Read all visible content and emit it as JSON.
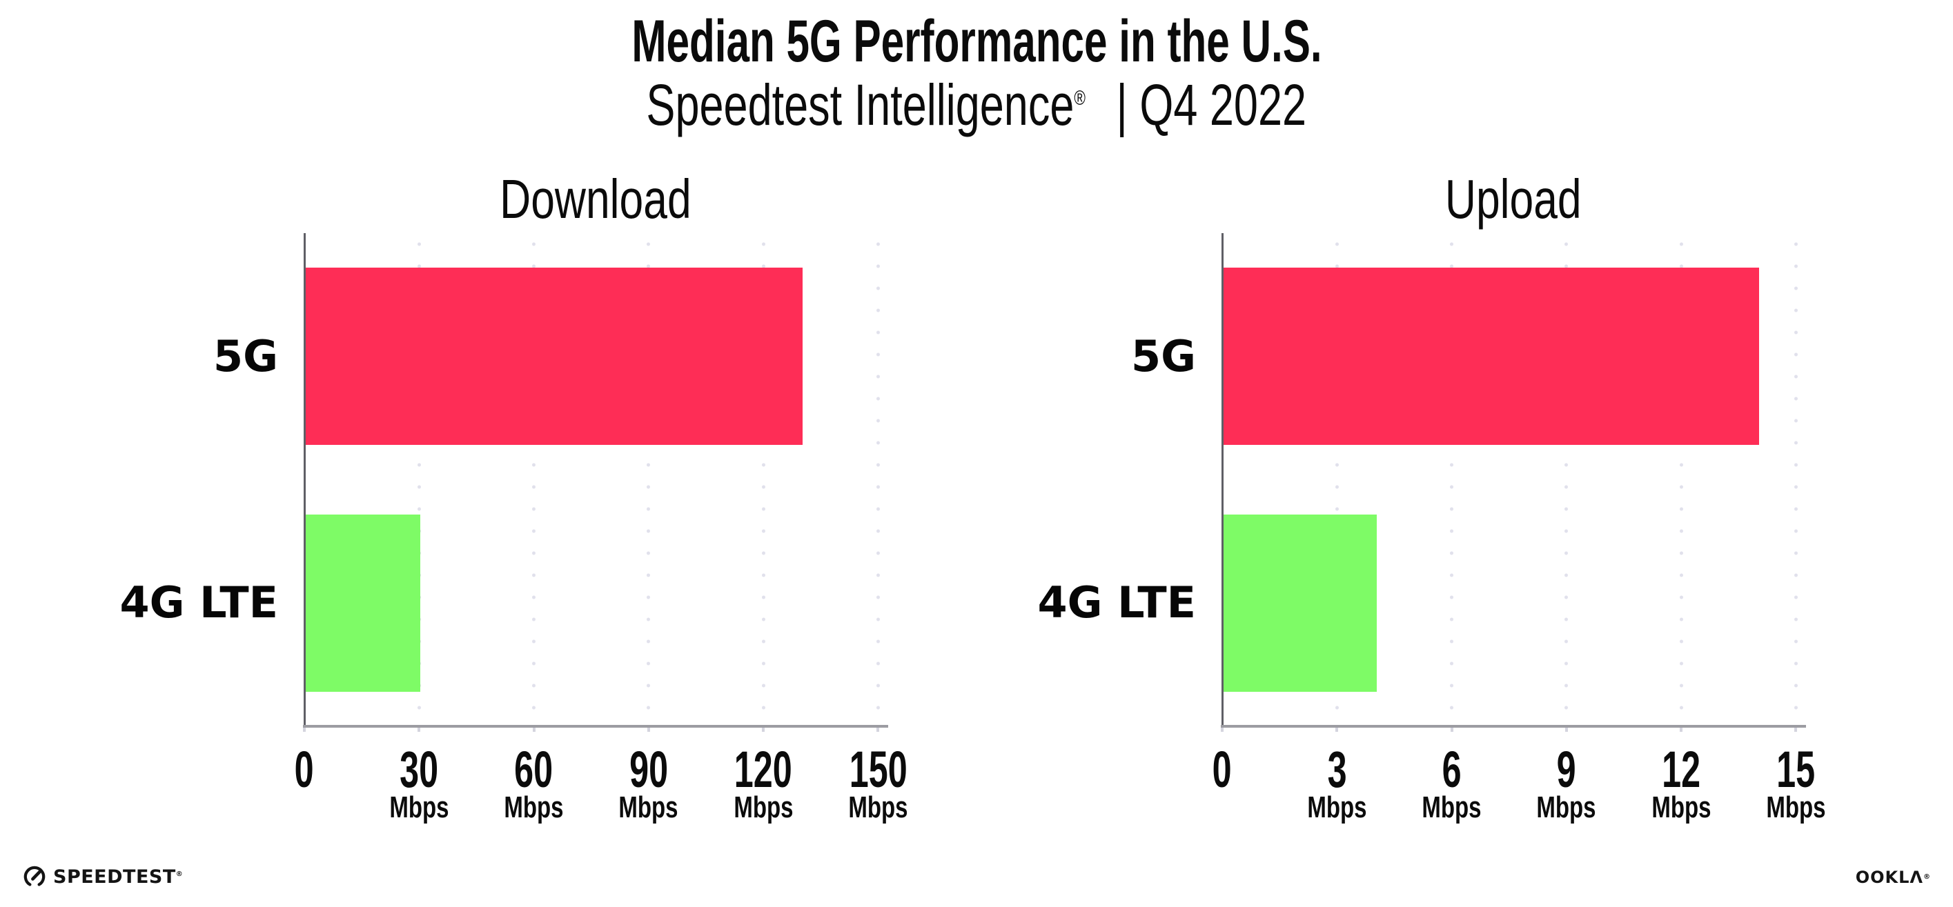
{
  "header": {
    "title": "Median 5G Performance in the U.S.",
    "subtitle_brand": "Speedtest Intelligence",
    "subtitle_reg": "®",
    "subtitle_rest": "| Q4 2022"
  },
  "chart_data": [
    {
      "type": "bar",
      "orientation": "horizontal",
      "title": "Download",
      "categories": [
        "5G",
        "4G LTE"
      ],
      "values": [
        130,
        30
      ],
      "unit": "Mbps",
      "ticks": [
        0,
        30,
        60,
        90,
        120,
        150
      ],
      "xlim": [
        0,
        152
      ],
      "grid": "dotted-vertical-at-ticks",
      "legend": "none"
    },
    {
      "type": "bar",
      "orientation": "horizontal",
      "title": "Upload",
      "categories": [
        "5G",
        "4G LTE"
      ],
      "values": [
        14,
        4
      ],
      "unit": "Mbps",
      "ticks": [
        0,
        3,
        6,
        9,
        12,
        15
      ],
      "xlim": [
        0,
        15.2
      ],
      "grid": "dotted-vertical-at-ticks",
      "legend": "none"
    }
  ],
  "colors": {
    "bar_5g": "#fe2d56",
    "bar_4g_lte": "#7efb66",
    "grid": "#e1e1ec",
    "axis_vertical": "#5f5f66",
    "axis_horizontal": "#9c9ca2",
    "text": "#0b0b0b"
  },
  "footer": {
    "speedtest_icon": "gauge-icon",
    "speedtest_wordmark": "SPEEDTEST",
    "speedtest_reg": "®",
    "ookla_wordmark": "OOKLΛ",
    "ookla_reg": "®"
  }
}
